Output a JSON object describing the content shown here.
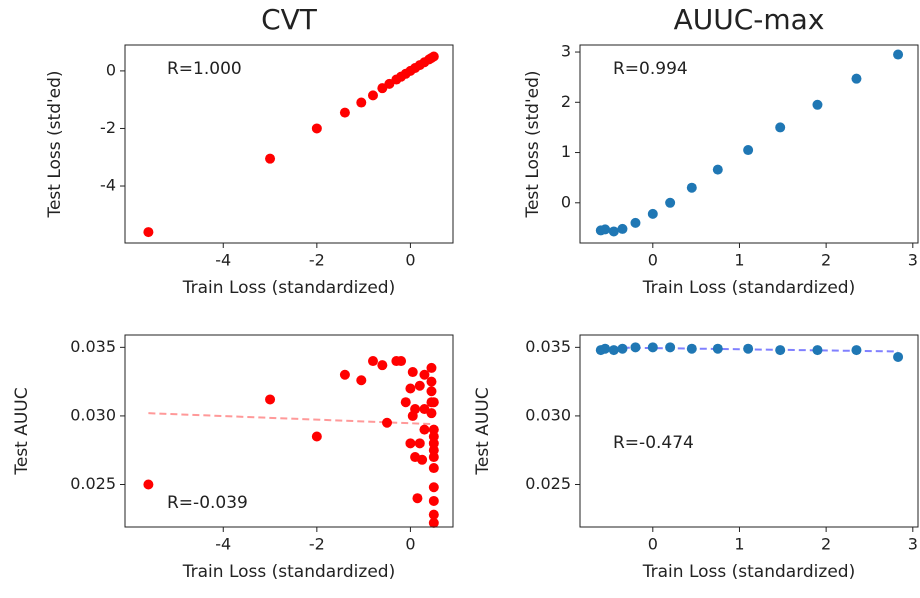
{
  "chart_data": [
    {
      "type": "scatter",
      "title": "CVT",
      "x_label": "Train Loss (standardized)",
      "y_label": "Test Loss (std'ed)",
      "annotation": "R=1.000",
      "annotation_corner": "upper left",
      "color": "#ff0000",
      "x": [
        -5.6,
        -3.0,
        -2.0,
        -1.4,
        -1.05,
        -0.8,
        -0.6,
        -0.45,
        -0.3,
        -0.2,
        -0.1,
        0,
        0.1,
        0.2,
        0.3,
        0.4,
        0.45,
        0.5
      ],
      "y": [
        -5.6,
        -3.05,
        -2.0,
        -1.45,
        -1.1,
        -0.85,
        -0.6,
        -0.45,
        -0.3,
        -0.2,
        -0.1,
        0,
        0.1,
        0.2,
        0.3,
        0.4,
        0.45,
        0.5
      ],
      "xlim": [
        -6.1,
        0.91
      ],
      "ylim": [
        -5.98,
        0.9
      ],
      "xticks": [
        -4,
        -2,
        0
      ],
      "yticks": [
        -4,
        -2,
        0
      ]
    },
    {
      "type": "scatter",
      "title": "AUUC-max",
      "x_label": "Train Loss (standardized)",
      "y_label": "Test Loss (std'ed)",
      "annotation": "R=0.994",
      "annotation_corner": "upper left",
      "color": "#1f77b4",
      "x": [
        -0.6,
        -0.55,
        -0.45,
        -0.35,
        -0.2,
        0,
        0.2,
        0.45,
        0.75,
        1.1,
        1.47,
        1.9,
        2.35,
        2.83
      ],
      "y": [
        -0.55,
        -0.53,
        -0.57,
        -0.52,
        -0.4,
        -0.22,
        0.0,
        0.3,
        0.66,
        1.05,
        1.5,
        1.95,
        2.47,
        2.95
      ],
      "xlim": [
        -0.84,
        3.06
      ],
      "ylim": [
        -0.8,
        3.14
      ],
      "xticks": [
        0,
        1,
        2,
        3
      ],
      "yticks": [
        0,
        1,
        2,
        3
      ]
    },
    {
      "type": "scatter",
      "x_label": "Train Loss (standardized)",
      "y_label": "Test AUUC",
      "annotation": "R=-0.039",
      "annotation_corner": "lower left",
      "color": "#ff0000",
      "x": [
        -5.6,
        -3.0,
        -2.0,
        -1.4,
        -1.05,
        -0.8,
        -0.6,
        -0.5,
        -0.3,
        -0.2,
        -0.1,
        0,
        0,
        0.05,
        0.05,
        0.1,
        0.1,
        0.15,
        0.2,
        0.2,
        0.25,
        0.3,
        0.3,
        0.3,
        0.45,
        0.45,
        0.45,
        0.45,
        0.45,
        0.5,
        0.5,
        0.5,
        0.5,
        0.5,
        0.5,
        0.5,
        0.5,
        0.5,
        0.5,
        0.5
      ],
      "y": [
        0.025,
        0.0312,
        0.0285,
        0.033,
        0.0326,
        0.034,
        0.0337,
        0.0295,
        0.034,
        0.034,
        0.031,
        0.032,
        0.028,
        0.0332,
        0.03,
        0.0305,
        0.027,
        0.024,
        0.0322,
        0.028,
        0.0268,
        0.033,
        0.0305,
        0.029,
        0.0335,
        0.0325,
        0.0318,
        0.031,
        0.0302,
        0.029,
        0.028,
        0.027,
        0.0262,
        0.0248,
        0.0238,
        0.0228,
        0.0222,
        0.031,
        0.0285,
        0.0275
      ],
      "trend": {
        "x": [
          -5.6,
          0.5
        ],
        "y": [
          0.0302,
          0.0294
        ],
        "color": "#ff9999"
      },
      "xlim": [
        -6.1,
        0.91
      ],
      "ylim": [
        0.0219,
        0.0359
      ],
      "xticks": [
        -4,
        -2,
        0
      ],
      "yticks": [
        {
          "value": 0.025,
          "label": "0.025"
        },
        {
          "value": 0.03,
          "label": "0.030"
        },
        {
          "value": 0.035,
          "label": "0.035"
        }
      ]
    },
    {
      "type": "scatter",
      "x_label": "Train Loss (standardized)",
      "y_label": "Test AUUC",
      "annotation": "R=-0.474",
      "annotation_corner": "center left",
      "color": "#1f77b4",
      "x": [
        -0.6,
        -0.55,
        -0.45,
        -0.35,
        -0.2,
        0,
        0.2,
        0.45,
        0.75,
        1.1,
        1.47,
        1.9,
        2.35,
        2.83
      ],
      "y": [
        0.0348,
        0.0349,
        0.0348,
        0.0349,
        0.035,
        0.035,
        0.035,
        0.0349,
        0.0349,
        0.0349,
        0.0348,
        0.0348,
        0.0348,
        0.0343
      ],
      "trend": {
        "x": [
          -0.6,
          2.83
        ],
        "y": [
          0.035,
          0.0347
        ],
        "color": "#8080ff"
      },
      "xlim": [
        -0.84,
        3.06
      ],
      "ylim": [
        0.0219,
        0.0359
      ],
      "xticks": [
        0,
        1,
        2,
        3
      ],
      "yticks": [
        {
          "value": 0.025,
          "label": "0.025"
        },
        {
          "value": 0.03,
          "label": "0.030"
        },
        {
          "value": 0.035,
          "label": "0.035"
        }
      ]
    }
  ]
}
